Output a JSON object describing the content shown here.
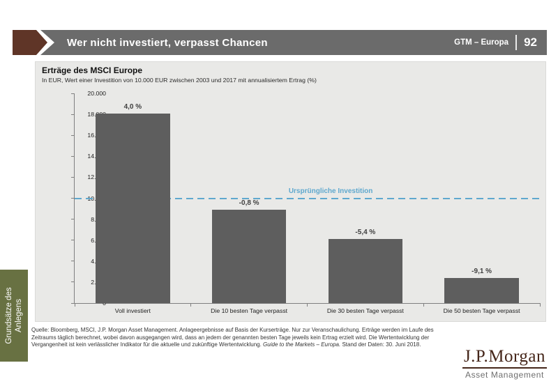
{
  "header": {
    "title": "Wer nicht investiert, verpasst Chancen",
    "right_label": "GTM – Europa",
    "page_number": "92",
    "bar_color": "#6B6B6B",
    "arrow_color": "#5F3527"
  },
  "side_tab": {
    "line1": "Grundsätze des",
    "line2": "Anlegens",
    "bg_color": "#687142"
  },
  "chart_data": {
    "type": "bar",
    "title": "Erträge des MSCI Europe",
    "subtitle": "In EUR, Wert einer Investition von 10.000 EUR zwischen 2003 und 2017 mit annualisiertem Ertrag (%)",
    "categories": [
      "Voll investiert",
      "Die 10 besten Tage verpasst",
      "Die 30 besten Tage verpasst",
      "Die 50 besten Tage verpasst"
    ],
    "values": [
      18100,
      8900,
      6100,
      2400
    ],
    "bar_labels": [
      "4,0 %",
      "-0,8 %",
      "-5,4 %",
      "-9,1 %"
    ],
    "ylim": [
      0,
      20000
    ],
    "ytick_labels": [
      "20.000",
      "18.000",
      "16.000",
      "14.000",
      "12.000",
      "10.000",
      "8.000",
      "6.000",
      "4.000",
      "2.000",
      "0"
    ],
    "reference_line": {
      "value": 10000,
      "label": "Ursprüngliche Investition",
      "color": "#5FA8CE",
      "style": "dashed"
    },
    "bar_color": "#5E5E5E",
    "grid": false,
    "legend": "none",
    "plot_bg": "#E9E9E7"
  },
  "footer": {
    "text_before_italic": "Quelle: Bloomberg, MSCI, J.P. Morgan Asset Management. Anlageergebnisse auf Basis der Kurserträge. Nur zur Veranschaulichung. Erträge werden im Laufe des Zeitraums täglich berechnet, wobei davon ausgegangen wird, dass an jedem der genannten besten Tage jeweils kein Ertrag erzielt wird. Die Wertentwicklung der Vergangenheit ist kein verlässlicher Indikator für die aktuelle und zukünftige Wertentwicklung. ",
    "italic": "Guide to the Markets – Europa.",
    "text_after_italic": " Stand der Daten: 30. Juni 2018."
  },
  "logo": {
    "name": "J.P.Morgan",
    "subtitle": "Asset Management"
  }
}
